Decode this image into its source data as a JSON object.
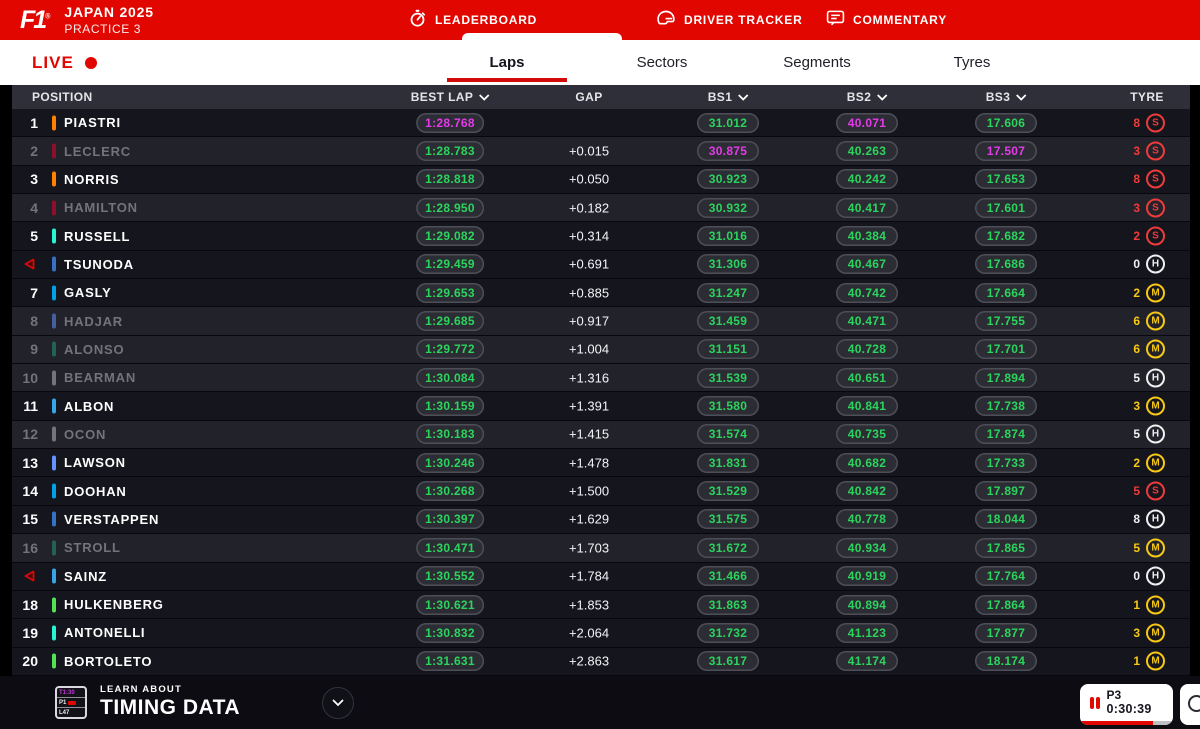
{
  "header": {
    "brand": {
      "logo": "F1",
      "trademark": "®",
      "event": "JAPAN 2025",
      "session": "PRACTICE 3"
    },
    "nav": [
      {
        "label": "LEADERBOARD",
        "icon": "stopwatch-icon",
        "active": true
      },
      {
        "label": "DRIVER TRACKER",
        "icon": "helmet-icon",
        "active": false
      },
      {
        "label": "COMMENTARY",
        "icon": "comment-icon",
        "active": false
      }
    ]
  },
  "subnav": {
    "live_label": "LIVE",
    "tabs": [
      "Laps",
      "Sectors",
      "Segments",
      "Tyres"
    ],
    "active_tab": "Laps"
  },
  "table": {
    "columns": {
      "position": "POSITION",
      "best_lap": "BEST LAP",
      "gap": "GAP",
      "bs1": "BS1",
      "bs2": "BS2",
      "bs3": "BS3",
      "tyre": "TYRE"
    },
    "rows": [
      {
        "pos": "1",
        "arrow": false,
        "driver": "PIASTRI",
        "team": "mclaren",
        "dimmed": false,
        "best": {
          "t": "1:28.768",
          "c": "p"
        },
        "gap": "",
        "s1": {
          "t": "31.012",
          "c": "g"
        },
        "s2": {
          "t": "40.071",
          "c": "p"
        },
        "s3": {
          "t": "17.606",
          "c": "g"
        },
        "tyre": {
          "compound": "S",
          "laps": "8"
        }
      },
      {
        "pos": "2",
        "arrow": false,
        "driver": "LECLERC",
        "team": "ferrari",
        "dimmed": true,
        "best": {
          "t": "1:28.783",
          "c": "g"
        },
        "gap": "+0.015",
        "s1": {
          "t": "30.875",
          "c": "p"
        },
        "s2": {
          "t": "40.263",
          "c": "g"
        },
        "s3": {
          "t": "17.507",
          "c": "p"
        },
        "tyre": {
          "compound": "S",
          "laps": "3"
        }
      },
      {
        "pos": "3",
        "arrow": false,
        "driver": "NORRIS",
        "team": "mclaren",
        "dimmed": false,
        "best": {
          "t": "1:28.818",
          "c": "g"
        },
        "gap": "+0.050",
        "s1": {
          "t": "30.923",
          "c": "g"
        },
        "s2": {
          "t": "40.242",
          "c": "g"
        },
        "s3": {
          "t": "17.653",
          "c": "g"
        },
        "tyre": {
          "compound": "S",
          "laps": "8"
        }
      },
      {
        "pos": "4",
        "arrow": false,
        "driver": "HAMILTON",
        "team": "ferrari",
        "dimmed": true,
        "best": {
          "t": "1:28.950",
          "c": "g"
        },
        "gap": "+0.182",
        "s1": {
          "t": "30.932",
          "c": "g"
        },
        "s2": {
          "t": "40.417",
          "c": "g"
        },
        "s3": {
          "t": "17.601",
          "c": "g"
        },
        "tyre": {
          "compound": "S",
          "laps": "3"
        }
      },
      {
        "pos": "5",
        "arrow": false,
        "driver": "RUSSELL",
        "team": "mercedes",
        "dimmed": false,
        "best": {
          "t": "1:29.082",
          "c": "g"
        },
        "gap": "+0.314",
        "s1": {
          "t": "31.016",
          "c": "g"
        },
        "s2": {
          "t": "40.384",
          "c": "g"
        },
        "s3": {
          "t": "17.682",
          "c": "g"
        },
        "tyre": {
          "compound": "S",
          "laps": "2"
        }
      },
      {
        "pos": "6",
        "arrow": true,
        "driver": "TSUNODA",
        "team": "redbull",
        "dimmed": false,
        "best": {
          "t": "1:29.459",
          "c": "g"
        },
        "gap": "+0.691",
        "s1": {
          "t": "31.306",
          "c": "g"
        },
        "s2": {
          "t": "40.467",
          "c": "g"
        },
        "s3": {
          "t": "17.686",
          "c": "g"
        },
        "tyre": {
          "compound": "H",
          "laps": "0"
        }
      },
      {
        "pos": "7",
        "arrow": false,
        "driver": "GASLY",
        "team": "alpine",
        "dimmed": false,
        "best": {
          "t": "1:29.653",
          "c": "g"
        },
        "gap": "+0.885",
        "s1": {
          "t": "31.247",
          "c": "g"
        },
        "s2": {
          "t": "40.742",
          "c": "g"
        },
        "s3": {
          "t": "17.664",
          "c": "g"
        },
        "tyre": {
          "compound": "M",
          "laps": "2"
        }
      },
      {
        "pos": "8",
        "arrow": false,
        "driver": "HADJAR",
        "team": "racingbulls",
        "dimmed": true,
        "best": {
          "t": "1:29.685",
          "c": "g"
        },
        "gap": "+0.917",
        "s1": {
          "t": "31.459",
          "c": "g"
        },
        "s2": {
          "t": "40.471",
          "c": "g"
        },
        "s3": {
          "t": "17.755",
          "c": "g"
        },
        "tyre": {
          "compound": "M",
          "laps": "6"
        }
      },
      {
        "pos": "9",
        "arrow": false,
        "driver": "ALONSO",
        "team": "astonmartin",
        "dimmed": true,
        "best": {
          "t": "1:29.772",
          "c": "g"
        },
        "gap": "+1.004",
        "s1": {
          "t": "31.151",
          "c": "g"
        },
        "s2": {
          "t": "40.728",
          "c": "g"
        },
        "s3": {
          "t": "17.701",
          "c": "g"
        },
        "tyre": {
          "compound": "M",
          "laps": "6"
        }
      },
      {
        "pos": "10",
        "arrow": false,
        "driver": "BEARMAN",
        "team": "haas",
        "dimmed": true,
        "best": {
          "t": "1:30.084",
          "c": "g"
        },
        "gap": "+1.316",
        "s1": {
          "t": "31.539",
          "c": "g"
        },
        "s2": {
          "t": "40.651",
          "c": "g"
        },
        "s3": {
          "t": "17.894",
          "c": "g"
        },
        "tyre": {
          "compound": "H",
          "laps": "5"
        }
      },
      {
        "pos": "11",
        "arrow": false,
        "driver": "ALBON",
        "team": "williams",
        "dimmed": false,
        "best": {
          "t": "1:30.159",
          "c": "g"
        },
        "gap": "+1.391",
        "s1": {
          "t": "31.580",
          "c": "g"
        },
        "s2": {
          "t": "40.841",
          "c": "g"
        },
        "s3": {
          "t": "17.738",
          "c": "g"
        },
        "tyre": {
          "compound": "M",
          "laps": "3"
        }
      },
      {
        "pos": "12",
        "arrow": false,
        "driver": "OCON",
        "team": "haas",
        "dimmed": true,
        "best": {
          "t": "1:30.183",
          "c": "g"
        },
        "gap": "+1.415",
        "s1": {
          "t": "31.574",
          "c": "g"
        },
        "s2": {
          "t": "40.735",
          "c": "g"
        },
        "s3": {
          "t": "17.874",
          "c": "g"
        },
        "tyre": {
          "compound": "H",
          "laps": "5"
        }
      },
      {
        "pos": "13",
        "arrow": false,
        "driver": "LAWSON",
        "team": "racingbulls",
        "dimmed": false,
        "best": {
          "t": "1:30.246",
          "c": "g"
        },
        "gap": "+1.478",
        "s1": {
          "t": "31.831",
          "c": "g"
        },
        "s2": {
          "t": "40.682",
          "c": "g"
        },
        "s3": {
          "t": "17.733",
          "c": "g"
        },
        "tyre": {
          "compound": "M",
          "laps": "2"
        }
      },
      {
        "pos": "14",
        "arrow": false,
        "driver": "DOOHAN",
        "team": "alpine",
        "dimmed": false,
        "best": {
          "t": "1:30.268",
          "c": "g"
        },
        "gap": "+1.500",
        "s1": {
          "t": "31.529",
          "c": "g"
        },
        "s2": {
          "t": "40.842",
          "c": "g"
        },
        "s3": {
          "t": "17.897",
          "c": "g"
        },
        "tyre": {
          "compound": "S",
          "laps": "5"
        }
      },
      {
        "pos": "15",
        "arrow": false,
        "driver": "VERSTAPPEN",
        "team": "redbull",
        "dimmed": false,
        "best": {
          "t": "1:30.397",
          "c": "g"
        },
        "gap": "+1.629",
        "s1": {
          "t": "31.575",
          "c": "g"
        },
        "s2": {
          "t": "40.778",
          "c": "g"
        },
        "s3": {
          "t": "18.044",
          "c": "g"
        },
        "tyre": {
          "compound": "H",
          "laps": "8"
        }
      },
      {
        "pos": "16",
        "arrow": false,
        "driver": "STROLL",
        "team": "astonmartin",
        "dimmed": true,
        "best": {
          "t": "1:30.471",
          "c": "g"
        },
        "gap": "+1.703",
        "s1": {
          "t": "31.672",
          "c": "g"
        },
        "s2": {
          "t": "40.934",
          "c": "g"
        },
        "s3": {
          "t": "17.865",
          "c": "g"
        },
        "tyre": {
          "compound": "M",
          "laps": "5"
        }
      },
      {
        "pos": "17",
        "arrow": true,
        "driver": "SAINZ",
        "team": "williams",
        "dimmed": false,
        "best": {
          "t": "1:30.552",
          "c": "g"
        },
        "gap": "+1.784",
        "s1": {
          "t": "31.466",
          "c": "g"
        },
        "s2": {
          "t": "40.919",
          "c": "g"
        },
        "s3": {
          "t": "17.764",
          "c": "g"
        },
        "tyre": {
          "compound": "H",
          "laps": "0"
        }
      },
      {
        "pos": "18",
        "arrow": false,
        "driver": "HULKENBERG",
        "team": "sauber",
        "dimmed": false,
        "best": {
          "t": "1:30.621",
          "c": "g"
        },
        "gap": "+1.853",
        "s1": {
          "t": "31.863",
          "c": "g"
        },
        "s2": {
          "t": "40.894",
          "c": "g"
        },
        "s3": {
          "t": "17.864",
          "c": "g"
        },
        "tyre": {
          "compound": "M",
          "laps": "1"
        }
      },
      {
        "pos": "19",
        "arrow": false,
        "driver": "ANTONELLI",
        "team": "mercedes",
        "dimmed": false,
        "best": {
          "t": "1:30.832",
          "c": "g"
        },
        "gap": "+2.064",
        "s1": {
          "t": "31.732",
          "c": "g"
        },
        "s2": {
          "t": "41.123",
          "c": "g"
        },
        "s3": {
          "t": "17.877",
          "c": "g"
        },
        "tyre": {
          "compound": "M",
          "laps": "3"
        }
      },
      {
        "pos": "20",
        "arrow": false,
        "driver": "BORTOLETO",
        "team": "sauber",
        "dimmed": false,
        "best": {
          "t": "1:31.631",
          "c": "g"
        },
        "gap": "+2.863",
        "s1": {
          "t": "31.617",
          "c": "g"
        },
        "s2": {
          "t": "41.174",
          "c": "g"
        },
        "s3": {
          "t": "18.174",
          "c": "g"
        },
        "tyre": {
          "compound": "M",
          "laps": "1"
        }
      }
    ]
  },
  "footer": {
    "mini_tower": [
      "T1:30",
      "P1",
      "L47"
    ],
    "learn_small": "LEARN ABOUT",
    "learn_big": "TIMING DATA",
    "session_label": "P3",
    "session_time": "0:30:39",
    "progress_pct": 78
  },
  "colors": {
    "accent": "#E10600",
    "green": "#2BD45C",
    "purple": "#E43BE8",
    "tyres": {
      "S": "#EF3B3A",
      "M": "#F7C915",
      "H": "#F0F0F0"
    },
    "teams": {
      "mclaren": "#FF8000",
      "ferrari": "#E8002D",
      "mercedes": "#27F4D2",
      "redbull": "#3671C6",
      "alpine": "#00A1E8",
      "racingbulls": "#6692FF",
      "astonmartin": "#229971",
      "haas": "#B6BABD",
      "williams": "#37A3E8",
      "sauber": "#52E252"
    }
  }
}
